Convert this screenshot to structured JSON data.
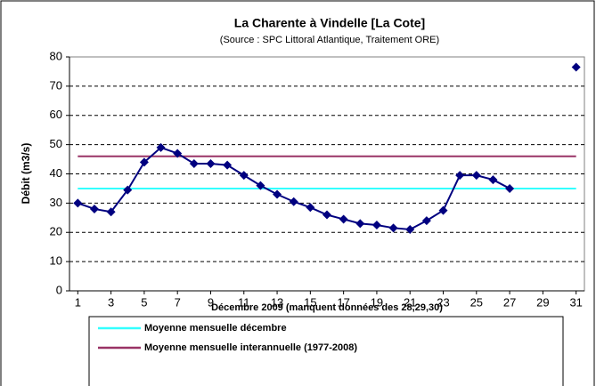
{
  "chart_data": {
    "type": "line",
    "title": "La Charente à Vindelle [La Cote]",
    "subtitle": "(Source : SPC Littoral Atlantique, Traitement ORE)",
    "ylabel": "Débit (m3/s)",
    "xlabel": "Décembre 2009 (manquent données des 28,29,30)",
    "x": [
      1,
      2,
      3,
      4,
      5,
      6,
      7,
      8,
      9,
      10,
      11,
      12,
      13,
      14,
      15,
      16,
      17,
      18,
      19,
      20,
      21,
      22,
      23,
      24,
      25,
      26,
      27,
      28,
      29,
      30,
      31
    ],
    "series": [
      {
        "color": "#000080",
        "values": [
          30,
          28,
          27,
          34.5,
          44,
          49,
          47,
          43.5,
          43.5,
          43,
          39.5,
          36,
          33,
          30.5,
          28.5,
          26,
          24.5,
          23,
          22.5,
          21.5,
          21,
          24,
          27.5,
          39.5,
          39.5,
          38,
          35,
          null,
          null,
          null,
          76.5
        ]
      }
    ],
    "reference_lines": [
      {
        "name": "Moyenne mensuelle décembre",
        "color": "#33ffff",
        "value": 35
      },
      {
        "name": "Moyenne mensuelle interannuelle (1977-2008)",
        "color": "#993366",
        "value": 46
      }
    ],
    "xlim": [
      0.5,
      31.5
    ],
    "xticks": [
      1,
      3,
      5,
      7,
      9,
      11,
      13,
      15,
      17,
      19,
      21,
      23,
      25,
      27,
      29,
      31
    ],
    "ylim": [
      0,
      80
    ],
    "yticks": [
      0,
      10,
      20,
      30,
      40,
      50,
      60,
      70,
      80
    ],
    "grid": true
  }
}
